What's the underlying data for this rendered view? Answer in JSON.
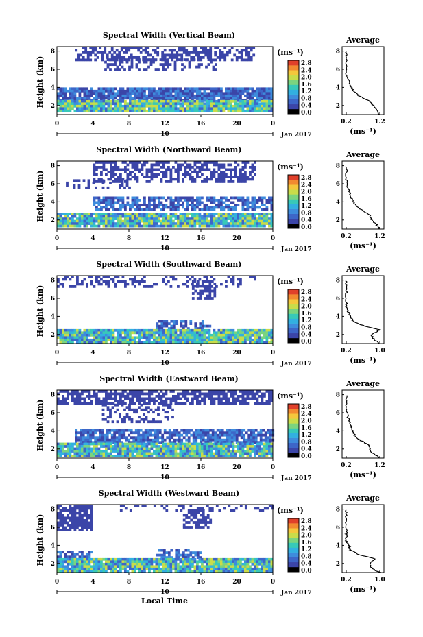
{
  "common": {
    "x_ticks": [
      "0",
      "4",
      "8",
      "12",
      "16",
      "20",
      "0"
    ],
    "y_ticks": [
      "2",
      "4",
      "6",
      "8"
    ],
    "ylabel": "Height (km)",
    "date_day": "10",
    "date_month_year": "Jan 2017",
    "xlabel": "Local Time",
    "colorbar_unit": "(ms⁻¹)",
    "colorbar_ticks": [
      "0.0",
      "0.4",
      "0.8",
      "1.2",
      "1.6",
      "2.0",
      "2.4",
      "2.8"
    ],
    "average_title": "Average",
    "average_unit": "(ms⁻¹)",
    "average_y_ticks": [
      "2",
      "4",
      "6",
      "8"
    ],
    "colors": [
      "#000000",
      "#3b45a8",
      "#3d66c8",
      "#3e8cdc",
      "#32b0e0",
      "#38c9b8",
      "#7bd47f",
      "#c9dc4a",
      "#f4c73c",
      "#f28a30",
      "#e0402a"
    ]
  },
  "panels": [
    {
      "title": "Spectral Width (Vertical Beam)",
      "avg_x_ticks": [
        "0.2",
        "1.2"
      ]
    },
    {
      "title": "Spectral Width (Northward Beam)",
      "avg_x_ticks": [
        "0.2",
        "1.2"
      ]
    },
    {
      "title": "Spectral Width (Southward Beam)",
      "avg_x_ticks": [
        "0.2",
        "1.0"
      ]
    },
    {
      "title": "Spectral Width (Eastward Beam)",
      "avg_x_ticks": [
        "0.2",
        "1.2"
      ]
    },
    {
      "title": "Spectral Width (Westward Beam)",
      "avg_x_ticks": [
        "0.2",
        "1.0"
      ]
    }
  ],
  "chart_data": [
    {
      "type": "heatmap",
      "title": "Spectral Width (Vertical Beam)",
      "ylabel": "Height (km)",
      "x_range_hours": [
        0,
        24
      ],
      "y_range_km": [
        1,
        8.5
      ],
      "colorbar_range": [
        0.0,
        2.8
      ],
      "profile": {
        "title": "Average",
        "x": [
          1.2,
          1.1,
          1.0,
          0.9,
          0.6,
          0.45,
          0.35,
          0.3,
          0.25,
          0.2,
          0.2,
          0.2,
          0.2
        ],
        "height_km": [
          1.0,
          1.5,
          2.0,
          2.5,
          3.0,
          3.5,
          4.0,
          4.5,
          5.0,
          5.5,
          6.5,
          7.5,
          8.0
        ]
      }
    },
    {
      "type": "heatmap",
      "title": "Spectral Width (Northward Beam)",
      "ylabel": "Height (km)",
      "x_range_hours": [
        0,
        24
      ],
      "y_range_km": [
        1,
        8.5
      ],
      "colorbar_range": [
        0.0,
        2.8
      ],
      "profile": {
        "title": "Average",
        "x": [
          1.2,
          1.1,
          0.95,
          0.9,
          0.7,
          0.5,
          0.4,
          0.35,
          0.3,
          0.25,
          0.2,
          0.2,
          0.2
        ],
        "height_km": [
          1.0,
          1.5,
          2.0,
          2.5,
          3.0,
          3.5,
          4.0,
          4.5,
          5.0,
          5.5,
          6.5,
          7.5,
          8.0
        ]
      }
    },
    {
      "type": "heatmap",
      "title": "Spectral Width (Southward Beam)",
      "ylabel": "Height (km)",
      "x_range_hours": [
        0,
        24
      ],
      "y_range_km": [
        1,
        8.5
      ],
      "colorbar_range": [
        0.0,
        2.8
      ],
      "profile": {
        "title": "Average",
        "x": [
          1.0,
          0.85,
          0.8,
          1.0,
          0.6,
          0.35,
          0.3,
          0.25,
          0.2,
          0.2,
          0.2,
          0.2,
          0.2
        ],
        "height_km": [
          1.0,
          1.5,
          2.0,
          2.5,
          3.0,
          3.5,
          4.0,
          4.5,
          5.0,
          5.5,
          6.5,
          7.5,
          8.0
        ]
      }
    },
    {
      "type": "heatmap",
      "title": "Spectral Width (Eastward Beam)",
      "ylabel": "Height (km)",
      "x_range_hours": [
        0,
        24
      ],
      "y_range_km": [
        1,
        8.5
      ],
      "colorbar_range": [
        0.0,
        2.8
      ],
      "profile": {
        "title": "Average",
        "x": [
          1.2,
          1.0,
          0.9,
          0.85,
          0.6,
          0.45,
          0.4,
          0.35,
          0.3,
          0.25,
          0.2,
          0.2,
          0.2
        ],
        "height_km": [
          1.0,
          1.5,
          2.0,
          2.5,
          3.0,
          3.5,
          4.0,
          4.5,
          5.0,
          5.5,
          6.5,
          7.5,
          8.0
        ]
      }
    },
    {
      "type": "heatmap",
      "title": "Spectral Width (Westward Beam)",
      "ylabel": "Height (km)",
      "x_range_hours": [
        0,
        24
      ],
      "y_range_km": [
        1,
        8.5
      ],
      "colorbar_range": [
        0.0,
        2.8
      ],
      "profile": {
        "title": "Average",
        "x": [
          1.0,
          0.8,
          0.75,
          0.9,
          0.5,
          0.3,
          0.25,
          0.2,
          0.2,
          0.2,
          0.2,
          0.2,
          0.2
        ],
        "height_km": [
          1.0,
          1.5,
          2.0,
          2.5,
          3.0,
          3.5,
          4.0,
          4.5,
          5.0,
          5.5,
          6.5,
          7.5,
          8.0
        ]
      }
    }
  ]
}
